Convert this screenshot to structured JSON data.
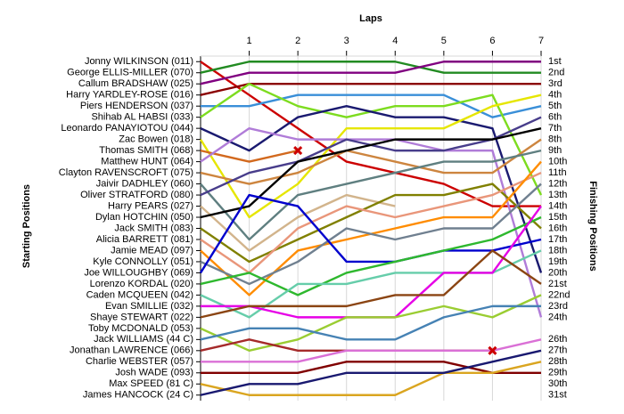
{
  "chart_data": {
    "type": "lap",
    "x_label": "Laps",
    "y_label": "Starting Positions",
    "y2_label": "Finishing Positions",
    "x": [
      0,
      1,
      2,
      3,
      4,
      5,
      6,
      7
    ],
    "xlim": [
      0,
      7
    ],
    "xticks": [
      1,
      2,
      3,
      4,
      5,
      6,
      7
    ],
    "ylim": [
      0.5,
      31.5
    ],
    "grid": true,
    "series": [
      {
        "name": "Jonny WILKINSON (011)",
        "color": "#cc0000",
        "values": [
          1,
          4,
          7,
          10,
          11,
          12,
          14,
          14
        ]
      },
      {
        "name": "George ELLIS-MILLER (070)",
        "color": "#228b22",
        "values": [
          2,
          1,
          1,
          1,
          1,
          2,
          2,
          2
        ]
      },
      {
        "name": "Callum BRADSHAW (025)",
        "color": "#800080",
        "values": [
          3,
          2,
          2,
          2,
          2,
          1,
          1,
          1
        ]
      },
      {
        "name": "Harry YARDLEY-ROSE (016)",
        "color": "#8b0000",
        "values": [
          4,
          3,
          3,
          3,
          3,
          3,
          3,
          3
        ]
      },
      {
        "name": "Piers HENDERSON (037)",
        "color": "#3a8fd8",
        "values": [
          5,
          5,
          4,
          4,
          4,
          4,
          6,
          5
        ]
      },
      {
        "name": "Shihab AL HABSI (033)",
        "color": "#7ddc1f",
        "values": [
          6,
          3,
          5,
          6,
          5,
          5,
          4,
          13
        ]
      },
      {
        "name": "Leonardo PANAYIOTOU (044)",
        "color": "#1a1a70",
        "values": [
          7,
          9,
          6,
          5,
          6,
          6,
          7,
          20
        ]
      },
      {
        "name": "Zac Bowen (018)",
        "color": "#e6e600",
        "values": [
          8,
          15,
          12,
          7,
          7,
          7,
          5,
          4
        ]
      },
      {
        "name": "Thomas SMITH (068)",
        "color": "#d2691e",
        "values": [
          9,
          10,
          9,
          null,
          null,
          null,
          null,
          null
        ]
      },
      {
        "name": "Matthew HUNT (064)",
        "color": "#b07cd8",
        "values": [
          10,
          7,
          8,
          8,
          8,
          9,
          9,
          24
        ]
      },
      {
        "name": "Clayton RAVENSCROFT (075)",
        "color": "#cd853f",
        "values": [
          11,
          12,
          11,
          9,
          10,
          11,
          11,
          8
        ]
      },
      {
        "name": "Jaivir DADHLEY (060)",
        "color": "#5f7f80",
        "values": [
          12,
          17,
          13,
          12,
          11,
          10,
          10,
          9
        ]
      },
      {
        "name": "Oliver STRATFORD (080)",
        "color": "#483d8b",
        "values": [
          13,
          11,
          10,
          8,
          9,
          9,
          8,
          6
        ]
      },
      {
        "name": "Harry PEARS (027)",
        "color": "#d2b48c",
        "values": [
          14,
          18,
          15,
          13,
          14,
          null,
          null,
          null
        ]
      },
      {
        "name": "Dylan HOTCHIN (050)",
        "color": "#000000",
        "values": [
          15,
          14,
          10,
          9,
          8,
          8,
          8,
          7
        ]
      },
      {
        "name": "Jack SMITH (083)",
        "color": "#808000",
        "values": [
          16,
          19,
          17,
          15,
          13,
          13,
          12,
          16
        ]
      },
      {
        "name": "Alicia BARRETT (081)",
        "color": "#e9967a",
        "values": [
          17,
          20,
          16,
          14,
          15,
          14,
          13,
          11
        ]
      },
      {
        "name": "Jamie MEAD (097)",
        "color": "#ff8c00",
        "values": [
          18,
          22,
          18,
          17,
          16,
          15,
          15,
          10
        ]
      },
      {
        "name": "Kyle CONNOLLY (051)",
        "color": "#708090",
        "values": [
          19,
          21,
          19,
          16,
          17,
          16,
          16,
          12
        ]
      },
      {
        "name": "Joe WILLOUGHBY (069)",
        "color": "#0000cd",
        "values": [
          20,
          13,
          14,
          19,
          19,
          18,
          18,
          17
        ]
      },
      {
        "name": "Lorenzo KORDAL (020)",
        "color": "#2eb82e",
        "values": [
          21,
          20,
          22,
          20,
          19,
          18,
          17,
          15
        ]
      },
      {
        "name": "Caden MCQUEEN (042)",
        "color": "#66cdaa",
        "values": [
          22,
          24,
          21,
          21,
          20,
          20,
          20,
          18
        ]
      },
      {
        "name": "Evan SMILLIE (032)",
        "color": "#e600e6",
        "values": [
          23,
          23,
          24,
          24,
          24,
          20,
          20,
          14
        ]
      },
      {
        "name": "Shaye STEWART (022)",
        "color": "#8b4513",
        "values": [
          24,
          23,
          23,
          23,
          22,
          22,
          18,
          21
        ]
      },
      {
        "name": "Toby MCDONALD (053)",
        "color": "#9acd32",
        "values": [
          25,
          27,
          26,
          24,
          24,
          23,
          24,
          22
        ]
      },
      {
        "name": "Jack WILLIAMS (44 C)",
        "color": "#4682b4",
        "values": [
          26,
          25,
          25,
          26,
          26,
          24,
          23,
          23
        ]
      },
      {
        "name": "Jonathan LAWRENCE (066)",
        "color": "#a52a2a",
        "values": [
          27,
          26,
          27,
          27,
          27,
          27,
          27,
          null
        ]
      },
      {
        "name": "Charlie WEBSTER (057)",
        "color": "#da70d6",
        "values": [
          28,
          28,
          28,
          27,
          27,
          27,
          27,
          26
        ]
      },
      {
        "name": "Josh WADE (093)",
        "color": "#800000",
        "values": [
          29,
          29,
          29,
          28,
          28,
          28,
          29,
          29
        ]
      },
      {
        "name": "Max SPEED (81 C)",
        "color": "#daa520",
        "values": [
          30,
          31,
          31,
          31,
          31,
          29,
          29,
          28
        ]
      },
      {
        "name": "James HANCOCK (24 C)",
        "color": "#191970",
        "values": [
          31,
          30,
          30,
          29,
          29,
          29,
          28,
          27
        ]
      }
    ],
    "finish_labels": [
      "1st",
      "2nd",
      "3rd",
      "4th",
      "5th",
      "6th",
      "7th",
      "8th",
      "9th",
      "10th",
      "11th",
      "12th",
      "13th",
      "14th",
      "15th",
      "16th",
      "17th",
      "18th",
      "19th",
      "20th",
      "21st",
      "22nd",
      "23rd",
      "24th",
      null,
      "26th",
      "27th",
      "28th",
      "29th",
      "30th",
      "31st"
    ],
    "crashes": [
      {
        "x": 2,
        "y": 9
      },
      {
        "x": 6,
        "y": 27
      }
    ]
  }
}
